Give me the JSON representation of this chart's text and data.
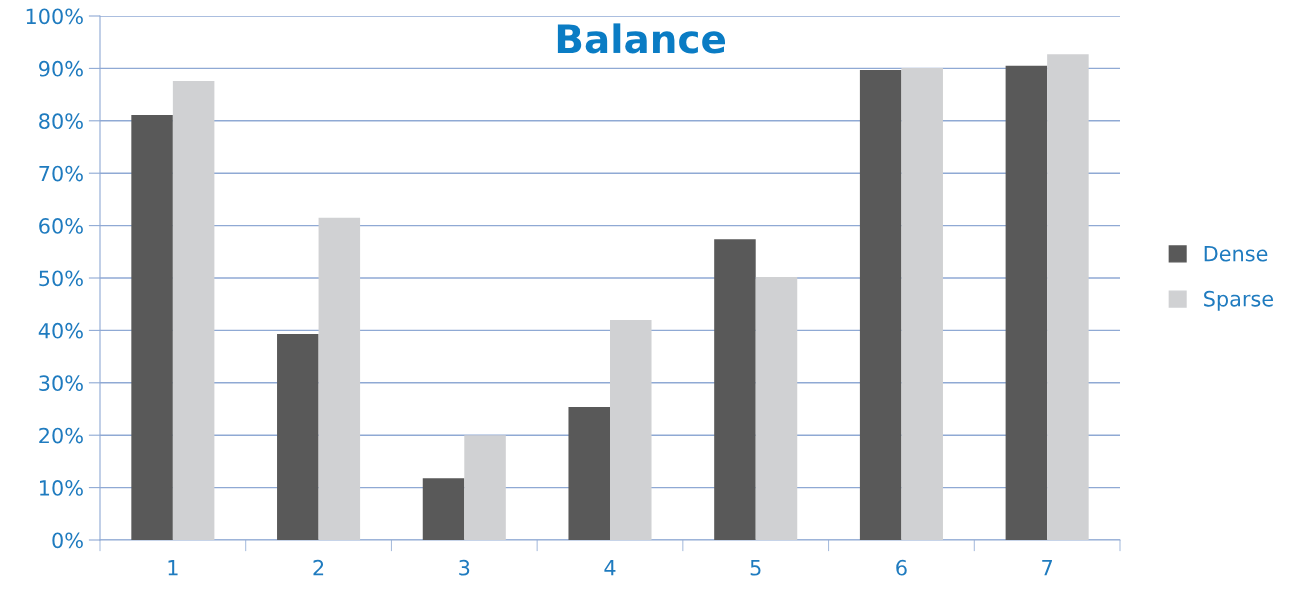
{
  "chart_data": {
    "type": "bar",
    "title": "Balance",
    "categories": [
      "1",
      "2",
      "3",
      "4",
      "5",
      "6",
      "7"
    ],
    "series": [
      {
        "name": "Dense",
        "color": "#595959",
        "values": [
          81.1,
          39.3,
          11.8,
          25.4,
          57.4,
          89.7,
          90.5
        ]
      },
      {
        "name": "Sparse",
        "color": "#d0d1d3",
        "values": [
          87.6,
          61.5,
          20.0,
          42.0,
          50.2,
          90.1,
          92.7
        ]
      }
    ],
    "ylim": [
      0,
      100
    ],
    "yticks": [
      {
        "value": 0,
        "label": "0%"
      },
      {
        "value": 10,
        "label": "10%"
      },
      {
        "value": 20,
        "label": "20%"
      },
      {
        "value": 30,
        "label": "30%"
      },
      {
        "value": 40,
        "label": "40%"
      },
      {
        "value": 50,
        "label": "50%"
      },
      {
        "value": 60,
        "label": "60%"
      },
      {
        "value": 70,
        "label": "70%"
      },
      {
        "value": 80,
        "label": "80%"
      },
      {
        "value": 90,
        "label": "90%"
      },
      {
        "value": 100,
        "label": "100%"
      }
    ],
    "grid": "y",
    "legend": "right"
  }
}
